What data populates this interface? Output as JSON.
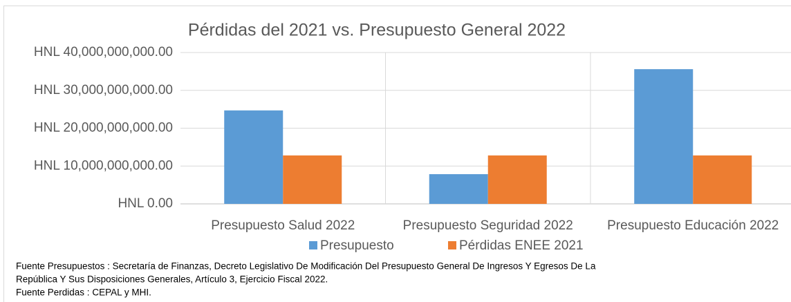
{
  "chart_data": {
    "type": "bar",
    "title": "Pérdidas del 2021 vs. Presupuesto General 2022",
    "categories": [
      "Presupuesto Salud 2022",
      "Presupuesto Seguridad 2022",
      "Presupuesto Educación 2022"
    ],
    "series": [
      {
        "name": "Presupuesto",
        "color": "#5b9bd5",
        "values": [
          24700000000,
          7850000000,
          35600000000
        ]
      },
      {
        "name": "Pérdidas ENEE 2021",
        "color": "#ed7d31",
        "values": [
          12800000000,
          12800000000,
          12800000000
        ]
      }
    ],
    "ylim": [
      0,
      40000000000
    ],
    "yticks": [
      {
        "value": 0,
        "label": "HNL 0.00"
      },
      {
        "value": 10000000000,
        "label": "HNL 10,000,000,000.00"
      },
      {
        "value": 20000000000,
        "label": "HNL 20,000,000,000.00"
      },
      {
        "value": 30000000000,
        "label": "HNL 30,000,000,000.00"
      },
      {
        "value": 40000000000,
        "label": "HNL 40,000,000,000.00"
      }
    ],
    "grid": true,
    "legend": "bottom",
    "notes": [
      "Fuente Presupuestos : Secretaría de Finanzas, Decreto Legislativo De Modificación Del Presupuesto General De Ingresos Y Egresos De La",
      "República Y Sus Disposiciones Generales, Artículo 3, Ejercicio Fiscal 2022.",
      "Fuente Perdidas : CEPAL y MHI."
    ]
  }
}
